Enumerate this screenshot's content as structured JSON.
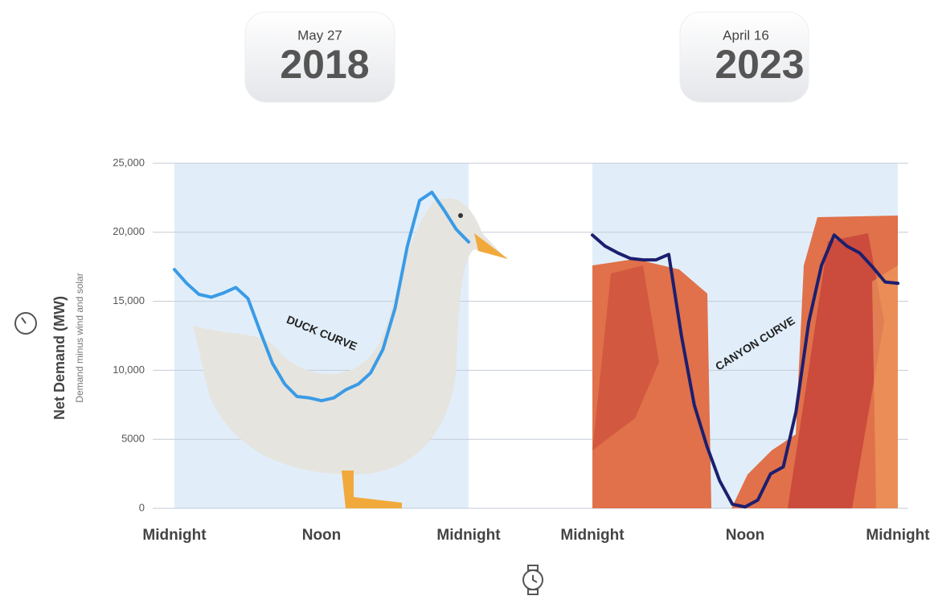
{
  "chart_data": [
    {
      "type": "line",
      "title": "2018",
      "subtitle": "May 27",
      "ylabel": "Net Demand (MW)",
      "ylabel_sub": "Demand minus wind and solar",
      "annotation": "DUCK CURVE",
      "color": "#3a9be6",
      "x": [
        0,
        1,
        2,
        3,
        4,
        5,
        6,
        7,
        8,
        9,
        10,
        11,
        12,
        13,
        14,
        15,
        16,
        17,
        18,
        19,
        20,
        21,
        22,
        23,
        24
      ],
      "values": [
        17300,
        16300,
        15500,
        15300,
        15600,
        16000,
        15200,
        12800,
        10500,
        9000,
        8100,
        8000,
        7800,
        8000,
        8600,
        9000,
        9800,
        11500,
        14500,
        19000,
        22300,
        22900,
        21600,
        20200,
        19300
      ],
      "xlim": [
        0,
        24
      ],
      "xticks": [
        {
          "value": 0,
          "label": "Midnight"
        },
        {
          "value": 12,
          "label": "Noon"
        },
        {
          "value": 24,
          "label": "Midnight"
        }
      ],
      "ylim": [
        0,
        25000
      ],
      "yticks": [
        0,
        5000,
        {
          "value": 10000,
          "label": "10,000"
        },
        {
          "value": 15000,
          "label": "15,000"
        },
        {
          "value": 20000,
          "label": "20,000"
        },
        {
          "value": 25000,
          "label": "25,000"
        }
      ],
      "grid": true
    },
    {
      "type": "line",
      "title": "2023",
      "subtitle": "April 16",
      "annotation": "CANYON CURVE",
      "color": "#1c1f6e",
      "x": [
        0,
        1,
        2,
        3,
        4,
        5,
        6,
        7,
        8,
        9,
        10,
        11,
        12,
        13,
        14,
        15,
        16,
        17,
        18,
        19,
        20,
        21,
        22,
        23,
        24
      ],
      "values": [
        19800,
        19000,
        18500,
        18100,
        18000,
        18000,
        18400,
        12500,
        7500,
        4500,
        2000,
        300,
        100,
        600,
        2500,
        3000,
        7000,
        13500,
        17600,
        19800,
        19000,
        18500,
        17500,
        16400,
        16300
      ],
      "xlim": [
        0,
        24
      ],
      "xticks": [
        {
          "value": 0,
          "label": "Midnight"
        },
        {
          "value": 12,
          "label": "Noon"
        },
        {
          "value": 24,
          "label": "Midnight"
        }
      ],
      "ylim": [
        0,
        25000
      ]
    }
  ]
}
